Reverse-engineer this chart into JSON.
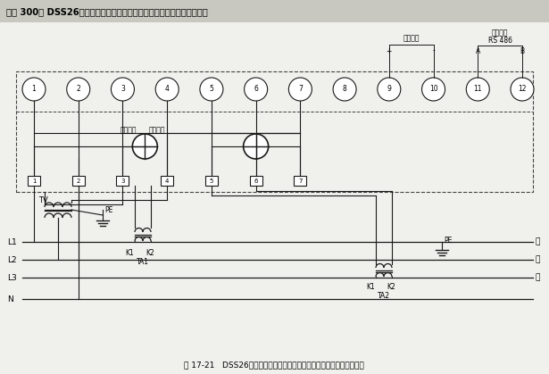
{
  "title": "【例 300】 DSS26型电子式电能表经电压互感器、电流互感器接入的接线",
  "caption": "图 17-21   DSS26型电子式电能表经电压互感器、电流互感器接入的接线",
  "bg_color": "#f0f0ec",
  "header_bg": "#c8c8c0",
  "terminal_numbers": [
    "1",
    "2",
    "3",
    "4",
    "5",
    "6",
    "7",
    "8",
    "9",
    "10",
    "11",
    "12"
  ],
  "label_maichong": "脉冲输出",
  "label_tongxin": "通信接口",
  "label_rs486": "RS 486",
  "label_plus": "+",
  "label_minus": "-",
  "label_A": "A",
  "label_B": "B",
  "label_dianliu": "电流线圈",
  "label_dianya": "电压线圈",
  "label_TV": "TV",
  "label_PE1": "PE",
  "label_PE2": "PE",
  "label_K1_1": "K1",
  "label_K2_1": "K2",
  "label_TA1": "TA1",
  "label_K1_2": "K1",
  "label_K2_2": "K2",
  "label_TA2": "TA2",
  "label_L1": "L1",
  "label_L2": "L2",
  "label_L3": "L3",
  "label_N": "N",
  "label_load1": "负",
  "label_load2": "荷",
  "label_load3": "侧",
  "line_color": "#1a1a1a",
  "dashed_color": "#444444"
}
